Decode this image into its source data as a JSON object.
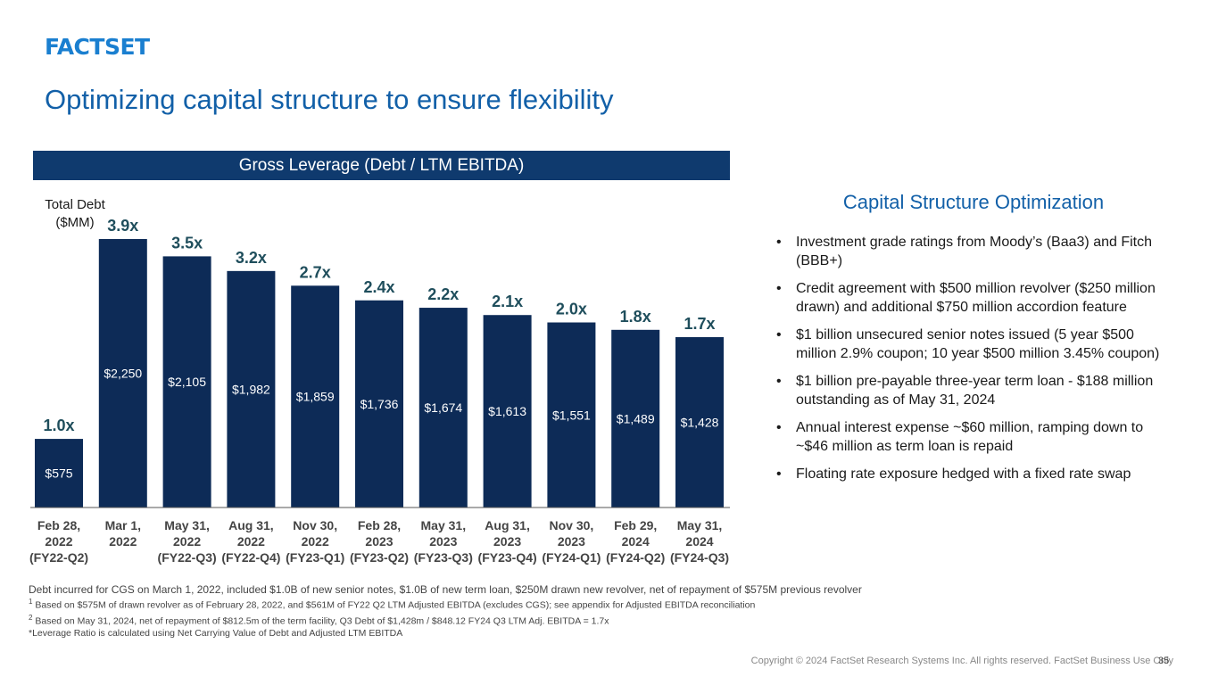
{
  "logo": "FACTSET",
  "title": "Optimizing capital structure to ensure flexibility",
  "chart_header": "Gross Leverage (Debt / LTM EBITDA)",
  "chart_data": {
    "type": "bar",
    "ylabel_line1": "Total Debt",
    "ylabel_line2": "($MM)",
    "categories": [
      [
        "Feb 28,",
        "2022",
        "(FY22-Q2)"
      ],
      [
        "Mar 1,",
        "2022",
        ""
      ],
      [
        "May 31,",
        "2022",
        "(FY22-Q3)"
      ],
      [
        "Aug 31,",
        "2022",
        "(FY22-Q4)"
      ],
      [
        "Nov 30,",
        "2022",
        "(FY23-Q1)"
      ],
      [
        "Feb 28,",
        "2023",
        "(FY23-Q2)"
      ],
      [
        "May 31,",
        "2023",
        "(FY23-Q3)"
      ],
      [
        "Aug 31,",
        "2023",
        "(FY23-Q4)"
      ],
      [
        "Nov 30,",
        "2023",
        "(FY24-Q1)"
      ],
      [
        "Feb 29,",
        "2024",
        "(FY24-Q2)"
      ],
      [
        "May 31,",
        "2024",
        "(FY24-Q3)"
      ]
    ],
    "values": [
      575,
      2250,
      2105,
      1982,
      1859,
      1736,
      1674,
      1613,
      1551,
      1489,
      1428
    ],
    "value_labels": [
      "$575",
      "$2,250",
      "$2,105",
      "$1,982",
      "$1,859",
      "$1,736",
      "$1,674",
      "$1,613",
      "$1,551",
      "$1,489",
      "$1,428"
    ],
    "leverage_labels": [
      "1.0x",
      "3.9x",
      "3.5x",
      "3.2x",
      "2.7x",
      "2.4x",
      "2.2x",
      "2.1x",
      "2.0x",
      "1.8x",
      "1.7x"
    ],
    "leverage_values": [
      1.0,
      3.9,
      3.5,
      3.2,
      2.7,
      2.4,
      2.2,
      2.1,
      2.0,
      1.8,
      1.7
    ],
    "colors": {
      "bar": "#0d2b57",
      "leverage_label": "#1f4e5c",
      "header": "#0f3a6e",
      "axis": "#555555"
    }
  },
  "right_panel": {
    "title": "Capital Structure Optimization",
    "bullets": [
      "Investment grade ratings from Moody’s (Baa3) and Fitch (BBB+)",
      "Credit agreement with $500 million revolver ($250 million drawn) and additional $750 million accordion feature",
      "$1 billion unsecured senior notes issued (5 year $500 million 2.9% coupon; 10 year $500 million 3.45% coupon)",
      "$1 billion pre-payable three-year term loan - $188 million outstanding as of May 31, 2024",
      "Annual interest expense ~$60 million, ramping down to ~$46 million as term loan is repaid",
      "Floating rate exposure hedged with a fixed rate swap"
    ]
  },
  "notes": {
    "main": "Debt incurred for CGS on March 1, 2022, included $1.0B of new senior notes, $1.0B of new term loan, $250M drawn new revolver, net of repayment of $575M previous revolver",
    "fn1_mark": "1",
    "fn1": " Based on $575M of drawn revolver as of February 28, 2022, and $561M of FY22 Q2 LTM Adjusted EBITDA (excludes CGS); see appendix for Adjusted EBITDA reconciliation",
    "fn2_mark": "2",
    "fn2": " Based on May 31, 2024, net of repayment of $812.5m of the term facility, Q3 Debt of $1,428m / $848.12 FY24 Q3 LTM Adj. EBITDA = 1.7x",
    "fn3": "*Leverage Ratio is calculated using Net Carrying Value of Debt and Adjusted LTM EBITDA"
  },
  "footer": {
    "copyright": "Copyright © 2024 FactSet Research Systems Inc. All rights reserved. FactSet Business Use Only",
    "page": "35"
  }
}
